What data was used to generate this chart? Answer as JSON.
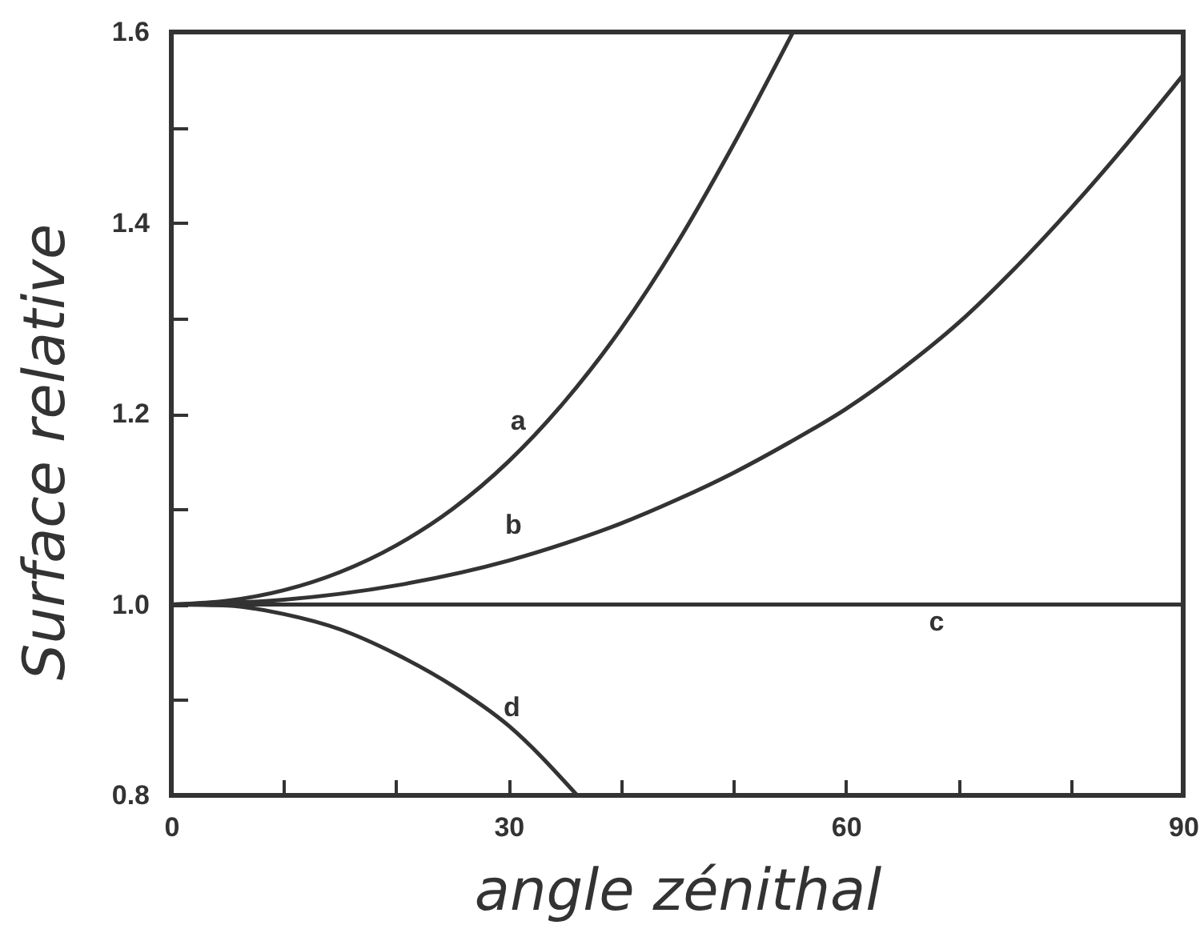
{
  "chart_data": {
    "type": "line",
    "xlabel": "angle zénithal",
    "ylabel": "Surface relative",
    "xlim": [
      0,
      90
    ],
    "ylim": [
      0.8,
      1.6
    ],
    "xticks": [
      0,
      {
        "value": 10,
        "label": null
      },
      {
        "value": 20,
        "label": null
      },
      30,
      {
        "value": 40,
        "label": null
      },
      {
        "value": 50,
        "label": null
      },
      60,
      {
        "value": 70,
        "label": null
      },
      {
        "value": 80,
        "label": null
      },
      90
    ],
    "yticks": [
      0.8,
      {
        "value": 0.9,
        "label": null
      },
      {
        "value": 1,
        "label": "1.0"
      },
      {
        "value": 1.1,
        "label": null
      },
      1.2,
      {
        "value": 1.3,
        "label": null
      },
      1.4,
      {
        "value": 1.5,
        "label": null
      },
      1.6
    ],
    "grid": false,
    "series": [
      {
        "name": "a",
        "color": "#333333",
        "x": [
          0,
          5,
          10,
          15,
          20,
          25,
          30,
          35,
          40,
          45,
          50,
          55.3
        ],
        "values": [
          1,
          1.004,
          1.015,
          1.034,
          1.062,
          1.1,
          1.15,
          1.213,
          1.289,
          1.379,
          1.482,
          1.6
        ]
      },
      {
        "name": "b",
        "color": "#333333",
        "x": [
          0,
          10,
          20,
          30,
          35,
          40,
          45,
          50,
          55,
          60,
          65,
          70,
          75,
          80,
          85,
          90
        ],
        "values": [
          1,
          1.005,
          1.02,
          1.046,
          1.064,
          1.085,
          1.11,
          1.138,
          1.17,
          1.205,
          1.247,
          1.295,
          1.352,
          1.415,
          1.483,
          1.555
        ]
      },
      {
        "name": "c",
        "color": "#333333",
        "x": [
          0,
          90
        ],
        "values": [
          1,
          1
        ]
      },
      {
        "name": "d",
        "color": "#333333",
        "x": [
          0,
          5,
          10,
          15,
          20,
          25,
          30,
          36.1
        ],
        "values": [
          1,
          0.999,
          0.99,
          0.974,
          0.948,
          0.915,
          0.873,
          0.8
        ]
      }
    ]
  }
}
